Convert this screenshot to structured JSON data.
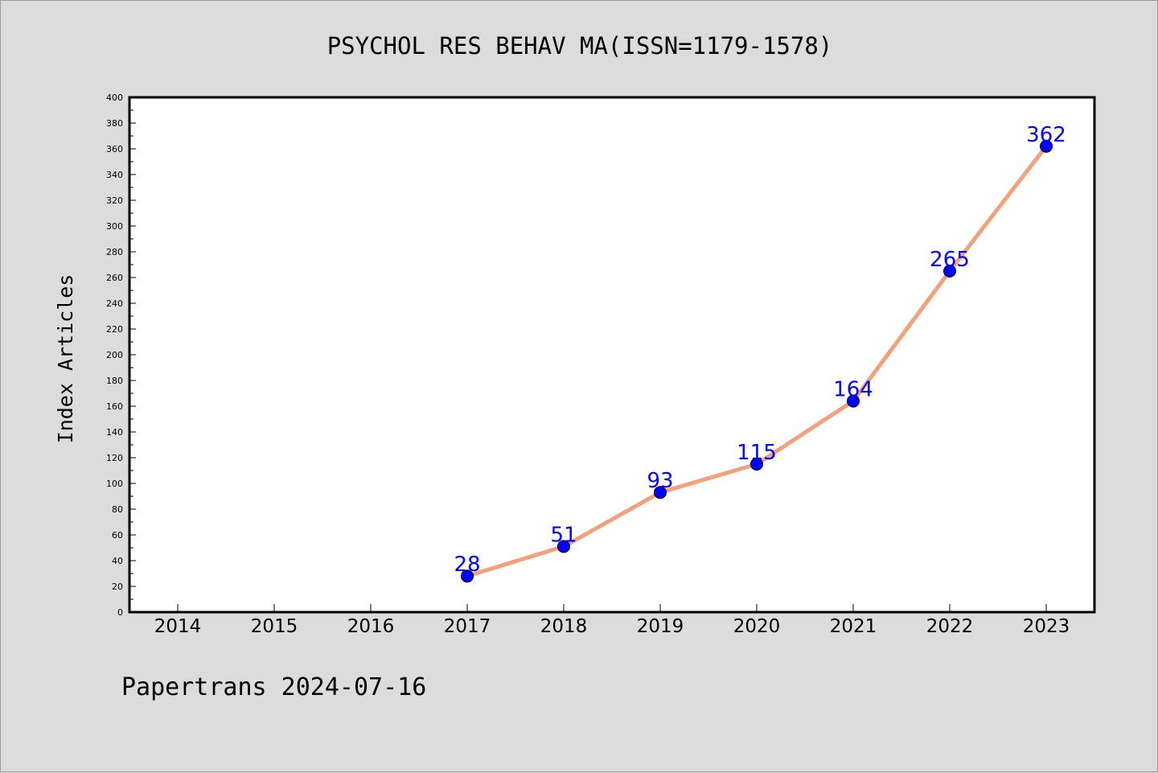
{
  "chart_data": {
    "type": "line",
    "title": "PSYCHOL RES BEHAV MA(ISSN=1179-1578)",
    "ylabel": "Index Articles",
    "xlabel": "",
    "categories": [
      "2014",
      "2015",
      "2016",
      "2017",
      "2018",
      "2019",
      "2020",
      "2021",
      "2022",
      "2023"
    ],
    "x": [
      "2017",
      "2018",
      "2019",
      "2020",
      "2021",
      "2022",
      "2023"
    ],
    "values": [
      28,
      51,
      93,
      115,
      164,
      265,
      362
    ],
    "ylim": [
      0,
      400
    ],
    "yticks": [
      0,
      20,
      40,
      60,
      80,
      100,
      120,
      140,
      160,
      180,
      200,
      220,
      240,
      260,
      280,
      300,
      320,
      340,
      360,
      380,
      400
    ],
    "grid": false,
    "line_color": "#f4a07a",
    "marker_color": "#0000ff",
    "label_color": "#0000ff",
    "footer": "Papertrans 2024-07-16"
  }
}
